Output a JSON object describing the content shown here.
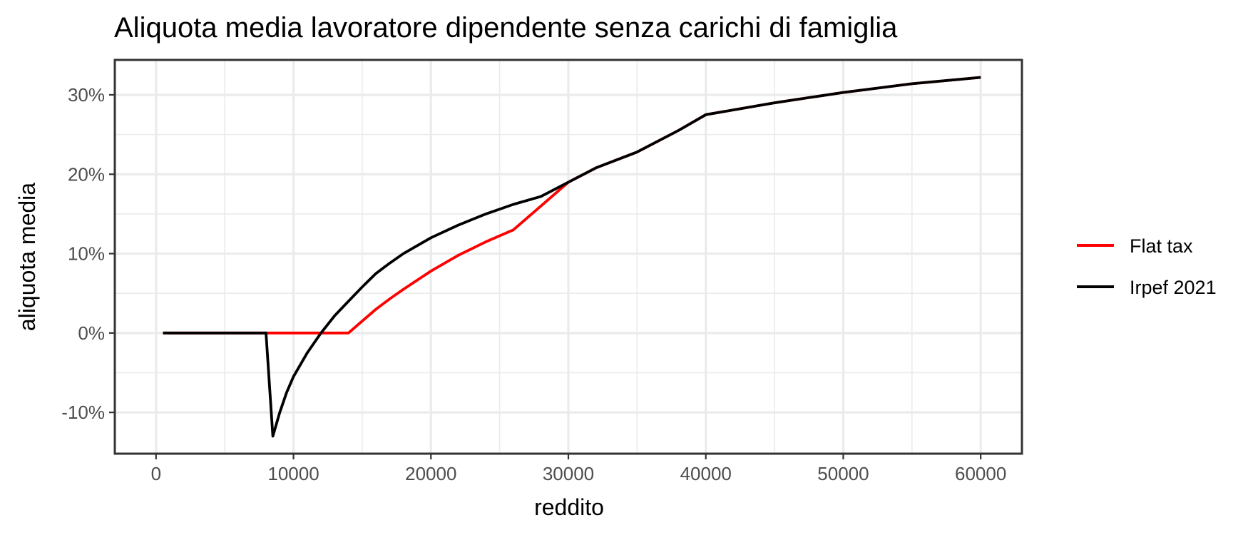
{
  "chart_data": {
    "type": "line",
    "title": "Aliquota media lavoratore dipendente senza carichi di famiglia",
    "xlabel": "reddito",
    "ylabel": "aliquota media",
    "xlim": [
      -3000,
      63000
    ],
    "ylim": [
      -15.2,
      34.4
    ],
    "x_ticks": [
      0,
      10000,
      20000,
      30000,
      40000,
      50000,
      60000
    ],
    "x_tick_labels": [
      "0",
      "10000",
      "20000",
      "30000",
      "40000",
      "50000",
      "60000"
    ],
    "y_ticks": [
      -10,
      0,
      10,
      20,
      30
    ],
    "y_tick_labels": [
      "-10%",
      "0%",
      "10%",
      "20%",
      "30%"
    ],
    "grid": true,
    "legend_position": "right",
    "series": [
      {
        "name": "Flat tax",
        "color": "#ff0000",
        "x": [
          500,
          8000,
          14000,
          15000,
          16000,
          17000,
          18000,
          20000,
          22000,
          24000,
          26000,
          28000,
          30000,
          32000,
          35000,
          38000,
          40000,
          45000,
          50000,
          55000,
          60000
        ],
        "y": [
          0,
          0,
          0,
          1.5,
          3.0,
          4.3,
          5.5,
          7.8,
          9.8,
          11.5,
          13.0,
          16.0,
          19.0,
          20.8,
          22.8,
          25.5,
          27.5,
          29.0,
          30.3,
          31.4,
          32.2
        ]
      },
      {
        "name": "Irpef 2021",
        "color": "#000000",
        "x": [
          500,
          8000,
          8500,
          9000,
          9500,
          10000,
          11000,
          12000,
          13000,
          14000,
          15000,
          16000,
          17000,
          18000,
          20000,
          22000,
          24000,
          26000,
          28000,
          30000,
          32000,
          35000,
          38000,
          40000,
          45000,
          50000,
          55000,
          60000
        ],
        "y": [
          0,
          0,
          -13.0,
          -10.0,
          -7.5,
          -5.5,
          -2.5,
          0.0,
          2.2,
          4.0,
          5.8,
          7.5,
          8.8,
          10.0,
          12.0,
          13.6,
          15.0,
          16.2,
          17.2,
          19.0,
          20.8,
          22.8,
          25.5,
          27.5,
          29.0,
          30.3,
          31.4,
          32.2
        ]
      }
    ]
  }
}
